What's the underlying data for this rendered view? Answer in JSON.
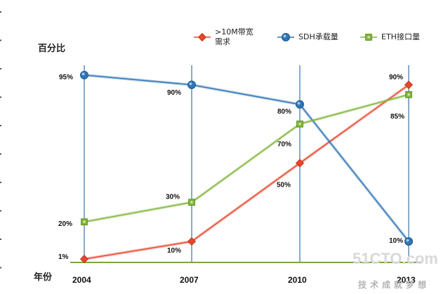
{
  "chart_data": {
    "type": "line",
    "ylabel": "百分比",
    "xlabel": "年份",
    "categories": [
      "2004",
      "2007",
      "2010",
      "2013"
    ],
    "ylim": [
      0,
      100
    ],
    "grid": "vertical lines at each category",
    "legend_position": "top-right",
    "series": [
      {
        "name": ">10M带宽需求",
        "name_lines": [
          ">10M带宽",
          "需求"
        ],
        "values": [
          1,
          10,
          50,
          90
        ],
        "labels": [
          "1%",
          "10%",
          "50%",
          "90%"
        ],
        "color": "#e8452c",
        "marker": "diamond"
      },
      {
        "name": "SDH承载量",
        "name_lines": [
          "SDH承载量"
        ],
        "values": [
          95,
          90,
          80,
          10
        ],
        "labels": [
          "95%",
          "90%",
          "80%",
          "10%"
        ],
        "color": "#2e75b6",
        "marker": "circle"
      },
      {
        "name": "ETH接口量",
        "name_lines": [
          "ETH接口量"
        ],
        "values": [
          20,
          30,
          70,
          85
        ],
        "labels": [
          "20%",
          "30%",
          "70%",
          "85%"
        ],
        "color": "#7fb536",
        "marker": "square"
      }
    ]
  },
  "watermark": {
    "logo": "51CTO.com",
    "tagline": "技术成就梦想"
  }
}
